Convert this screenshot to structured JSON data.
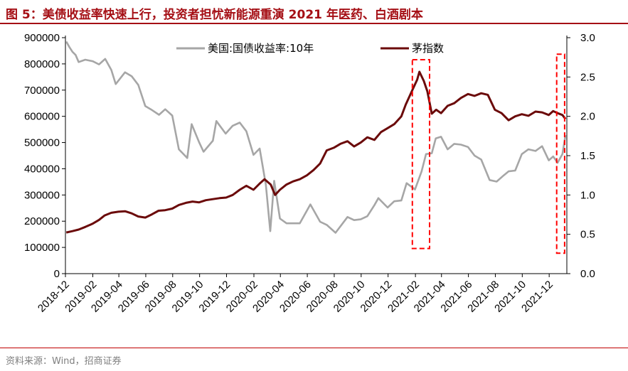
{
  "header": {
    "title": "图 5：美债收益率快速上行，投资者担忧新能源重演 2021 年医药、白酒剧本"
  },
  "footer": {
    "source": "资料来源：Wind，招商证券"
  },
  "colors": {
    "title": "#a50f15",
    "treasury": "#a6a6a6",
    "maotai": "#6b0a0a",
    "highlight": "#ff0000"
  },
  "chart_data": {
    "type": "line",
    "x_ticks": [
      "2018-12",
      "2019-02",
      "2019-04",
      "2019-06",
      "2019-08",
      "2019-10",
      "2019-12",
      "2020-02",
      "2020-04",
      "2020-06",
      "2020-08",
      "2020-10",
      "2020-12",
      "2021-02",
      "2021-04",
      "2021-06",
      "2021-08",
      "2021-10",
      "2021-12"
    ],
    "y_left": {
      "ticks": [
        "0",
        "100000",
        "200000",
        "300000",
        "400000",
        "500000",
        "600000",
        "700000",
        "800000",
        "900000"
      ],
      "lim": [
        0,
        900000
      ]
    },
    "y_right": {
      "ticks": [
        "0.0",
        "0.5",
        "1.0",
        "1.5",
        "2.0",
        "2.5",
        "3.0"
      ],
      "lim": [
        0.0,
        3.0
      ]
    },
    "legend_position": "top",
    "series": [
      {
        "name": "美国:国债收益率:10年",
        "axis": "right",
        "color": "#a6a6a6",
        "points": [
          [
            "2018-12-03",
            2.95
          ],
          [
            "2018-12-10",
            2.88
          ],
          [
            "2018-12-17",
            2.82
          ],
          [
            "2018-12-24",
            2.78
          ],
          [
            "2018-12-31",
            2.69
          ],
          [
            "2019-01-15",
            2.72
          ],
          [
            "2019-02-01",
            2.7
          ],
          [
            "2019-02-15",
            2.66
          ],
          [
            "2019-03-01",
            2.73
          ],
          [
            "2019-03-15",
            2.59
          ],
          [
            "2019-03-25",
            2.41
          ],
          [
            "2019-04-15",
            2.56
          ],
          [
            "2019-04-30",
            2.51
          ],
          [
            "2019-05-15",
            2.4
          ],
          [
            "2019-05-31",
            2.13
          ],
          [
            "2019-06-15",
            2.08
          ],
          [
            "2019-07-01",
            2.02
          ],
          [
            "2019-07-15",
            2.09
          ],
          [
            "2019-07-31",
            2.01
          ],
          [
            "2019-08-15",
            1.58
          ],
          [
            "2019-09-03",
            1.47
          ],
          [
            "2019-09-13",
            1.9
          ],
          [
            "2019-09-30",
            1.67
          ],
          [
            "2019-10-10",
            1.55
          ],
          [
            "2019-10-31",
            1.69
          ],
          [
            "2019-11-08",
            1.94
          ],
          [
            "2019-11-29",
            1.78
          ],
          [
            "2019-12-15",
            1.88
          ],
          [
            "2019-12-31",
            1.92
          ],
          [
            "2020-01-15",
            1.81
          ],
          [
            "2020-01-31",
            1.51
          ],
          [
            "2020-02-14",
            1.59
          ],
          [
            "2020-02-28",
            1.13
          ],
          [
            "2020-03-09",
            0.54
          ],
          [
            "2020-03-18",
            1.18
          ],
          [
            "2020-03-31",
            0.7
          ],
          [
            "2020-04-15",
            0.64
          ],
          [
            "2020-04-30",
            0.64
          ],
          [
            "2020-05-15",
            0.64
          ],
          [
            "2020-06-08",
            0.88
          ],
          [
            "2020-06-30",
            0.66
          ],
          [
            "2020-07-15",
            0.62
          ],
          [
            "2020-08-04",
            0.52
          ],
          [
            "2020-08-31",
            0.72
          ],
          [
            "2020-09-15",
            0.68
          ],
          [
            "2020-09-30",
            0.69
          ],
          [
            "2020-10-15",
            0.73
          ],
          [
            "2020-10-31",
            0.87
          ],
          [
            "2020-11-09",
            0.96
          ],
          [
            "2020-11-30",
            0.84
          ],
          [
            "2020-12-15",
            0.92
          ],
          [
            "2020-12-31",
            0.93
          ],
          [
            "2021-01-12",
            1.15
          ],
          [
            "2021-01-31",
            1.07
          ],
          [
            "2021-02-15",
            1.3
          ],
          [
            "2021-02-25",
            1.52
          ],
          [
            "2021-03-10",
            1.53
          ],
          [
            "2021-03-19",
            1.72
          ],
          [
            "2021-03-31",
            1.74
          ],
          [
            "2021-04-15",
            1.58
          ],
          [
            "2021-04-30",
            1.65
          ],
          [
            "2021-05-15",
            1.64
          ],
          [
            "2021-05-31",
            1.61
          ],
          [
            "2021-06-15",
            1.5
          ],
          [
            "2021-06-30",
            1.45
          ],
          [
            "2021-07-19",
            1.19
          ],
          [
            "2021-08-04",
            1.17
          ],
          [
            "2021-08-20",
            1.25
          ],
          [
            "2021-08-31",
            1.3
          ],
          [
            "2021-09-15",
            1.31
          ],
          [
            "2021-09-30",
            1.52
          ],
          [
            "2021-10-15",
            1.58
          ],
          [
            "2021-10-31",
            1.56
          ],
          [
            "2021-11-15",
            1.62
          ],
          [
            "2021-11-30",
            1.44
          ],
          [
            "2021-12-10",
            1.49
          ],
          [
            "2021-12-20",
            1.41
          ],
          [
            "2021-12-31",
            1.52
          ],
          [
            "2022-01-07",
            1.76
          ]
        ]
      },
      {
        "name": "茅指数",
        "axis": "left",
        "color": "#6b0a0a",
        "points": [
          [
            "2018-12-03",
            157000
          ],
          [
            "2018-12-17",
            162000
          ],
          [
            "2018-12-31",
            168000
          ],
          [
            "2019-01-15",
            178000
          ],
          [
            "2019-01-31",
            190000
          ],
          [
            "2019-02-15",
            205000
          ],
          [
            "2019-02-28",
            222000
          ],
          [
            "2019-03-15",
            232000
          ],
          [
            "2019-03-31",
            236000
          ],
          [
            "2019-04-15",
            238000
          ],
          [
            "2019-04-30",
            230000
          ],
          [
            "2019-05-15",
            218000
          ],
          [
            "2019-05-31",
            214000
          ],
          [
            "2019-06-15",
            226000
          ],
          [
            "2019-06-30",
            240000
          ],
          [
            "2019-07-15",
            242000
          ],
          [
            "2019-07-31",
            248000
          ],
          [
            "2019-08-15",
            262000
          ],
          [
            "2019-08-31",
            270000
          ],
          [
            "2019-09-15",
            275000
          ],
          [
            "2019-09-30",
            272000
          ],
          [
            "2019-10-15",
            280000
          ],
          [
            "2019-10-31",
            284000
          ],
          [
            "2019-11-15",
            288000
          ],
          [
            "2019-11-30",
            290000
          ],
          [
            "2019-12-15",
            300000
          ],
          [
            "2019-12-31",
            320000
          ],
          [
            "2020-01-15",
            335000
          ],
          [
            "2020-01-31",
            320000
          ],
          [
            "2020-02-15",
            345000
          ],
          [
            "2020-02-25",
            360000
          ],
          [
            "2020-03-10",
            340000
          ],
          [
            "2020-03-20",
            300000
          ],
          [
            "2020-03-31",
            320000
          ],
          [
            "2020-04-15",
            340000
          ],
          [
            "2020-04-30",
            352000
          ],
          [
            "2020-05-15",
            360000
          ],
          [
            "2020-05-31",
            375000
          ],
          [
            "2020-06-15",
            395000
          ],
          [
            "2020-06-30",
            420000
          ],
          [
            "2020-07-15",
            470000
          ],
          [
            "2020-07-31",
            480000
          ],
          [
            "2020-08-15",
            495000
          ],
          [
            "2020-08-31",
            505000
          ],
          [
            "2020-09-15",
            485000
          ],
          [
            "2020-09-30",
            500000
          ],
          [
            "2020-10-15",
            520000
          ],
          [
            "2020-10-31",
            510000
          ],
          [
            "2020-11-15",
            540000
          ],
          [
            "2020-11-30",
            555000
          ],
          [
            "2020-12-15",
            570000
          ],
          [
            "2020-12-31",
            600000
          ],
          [
            "2021-01-10",
            645000
          ],
          [
            "2021-01-25",
            700000
          ],
          [
            "2021-02-05",
            740000
          ],
          [
            "2021-02-10",
            770000
          ],
          [
            "2021-02-20",
            735000
          ],
          [
            "2021-02-28",
            695000
          ],
          [
            "2021-03-10",
            610000
          ],
          [
            "2021-03-20",
            625000
          ],
          [
            "2021-03-31",
            612000
          ],
          [
            "2021-04-15",
            640000
          ],
          [
            "2021-04-30",
            650000
          ],
          [
            "2021-05-15",
            670000
          ],
          [
            "2021-05-31",
            685000
          ],
          [
            "2021-06-15",
            678000
          ],
          [
            "2021-06-30",
            688000
          ],
          [
            "2021-07-15",
            682000
          ],
          [
            "2021-07-31",
            625000
          ],
          [
            "2021-08-15",
            612000
          ],
          [
            "2021-08-31",
            585000
          ],
          [
            "2021-09-15",
            600000
          ],
          [
            "2021-09-30",
            608000
          ],
          [
            "2021-10-15",
            602000
          ],
          [
            "2021-10-31",
            618000
          ],
          [
            "2021-11-15",
            615000
          ],
          [
            "2021-11-30",
            605000
          ],
          [
            "2021-12-10",
            620000
          ],
          [
            "2021-12-20",
            612000
          ],
          [
            "2021-12-31",
            605000
          ],
          [
            "2022-01-07",
            590000
          ]
        ]
      }
    ],
    "highlight_boxes": [
      {
        "x_start": "2021-01-25",
        "x_end": "2021-03-05",
        "y_right": [
          0.32,
          2.72
        ]
      },
      {
        "x_start": "2021-12-18",
        "x_end": "2022-01-05",
        "y_right": [
          0.26,
          2.79
        ]
      }
    ]
  }
}
